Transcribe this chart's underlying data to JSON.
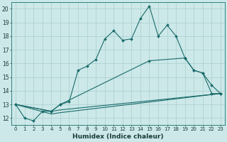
{
  "xlabel": "Humidex (Indice chaleur)",
  "xlim": [
    -0.5,
    23.5
  ],
  "ylim": [
    11.5,
    20.5
  ],
  "yticks": [
    12,
    13,
    14,
    15,
    16,
    17,
    18,
    19,
    20
  ],
  "xticks": [
    0,
    1,
    2,
    3,
    4,
    5,
    6,
    7,
    8,
    9,
    10,
    11,
    12,
    13,
    14,
    15,
    16,
    17,
    18,
    19,
    20,
    21,
    22,
    23
  ],
  "bg_color": "#cce8e8",
  "grid_color": "#aacfcf",
  "line_color": "#1a6b6b",
  "series": [
    {
      "x": [
        0,
        1,
        2,
        3,
        4,
        5,
        6,
        7,
        8,
        9,
        10,
        11,
        12,
        13,
        14,
        15,
        16,
        17,
        18,
        19,
        20,
        21,
        22,
        23
      ],
      "y": [
        13.0,
        12.0,
        11.8,
        12.5,
        12.5,
        13.0,
        13.2,
        15.5,
        15.8,
        16.3,
        17.8,
        18.4,
        17.7,
        17.8,
        19.3,
        20.2,
        18.0,
        18.8,
        18.0,
        16.4,
        15.5,
        15.3,
        13.8,
        13.8
      ],
      "has_markers": true
    },
    {
      "x": [
        0,
        4,
        5,
        15,
        19,
        20,
        21,
        22,
        23
      ],
      "y": [
        13.0,
        12.5,
        13.0,
        16.2,
        16.4,
        15.5,
        15.3,
        14.4,
        13.8
      ],
      "has_markers": true
    },
    {
      "x": [
        0,
        4,
        5,
        23
      ],
      "y": [
        13.0,
        12.5,
        12.6,
        13.8
      ],
      "has_markers": false
    },
    {
      "x": [
        0,
        4,
        5,
        23
      ],
      "y": [
        13.0,
        12.3,
        12.4,
        13.8
      ],
      "has_markers": false
    }
  ]
}
